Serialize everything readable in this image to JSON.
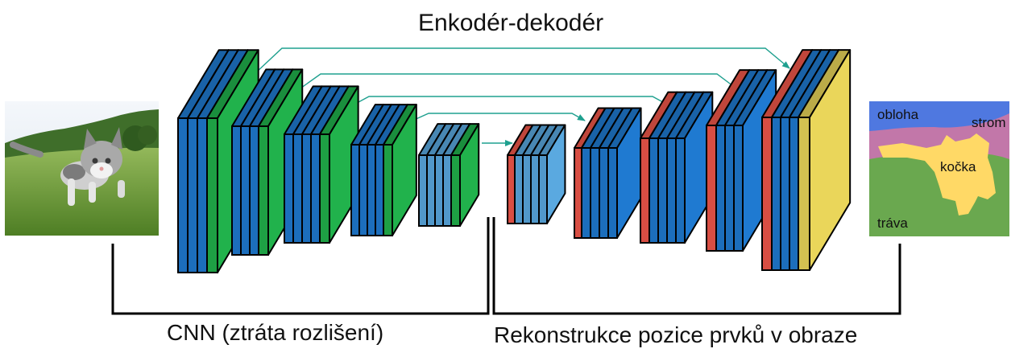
{
  "title": "Enkodér-dekodér",
  "left_caption": "CNN (ztráta rozlišení)",
  "right_caption": "Rekonstrukce pozice prvků v obraze",
  "segmentation_labels": {
    "sky": "obloha",
    "tree": "strom",
    "cat": "kočka",
    "grass": "tráva"
  },
  "colors": {
    "conv": "#1f7ad1",
    "pool": "#21b24c",
    "small_conv": "#5aa9e0",
    "upsample": "#f0574a",
    "softmax": "#ead65a",
    "seg_sky": "#4f78e0",
    "seg_tree": "#c277a9",
    "seg_grass": "#6aa84f",
    "seg_cat": "#ffd966"
  }
}
